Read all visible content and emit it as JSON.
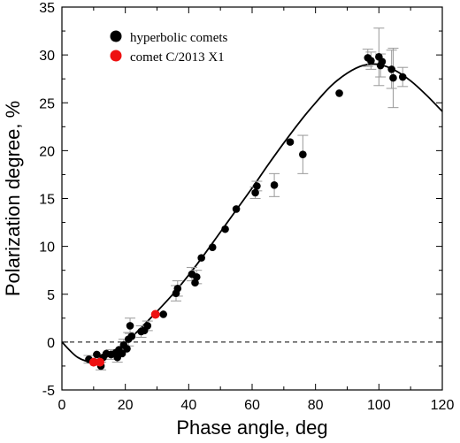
{
  "chart_data": {
    "type": "scatter",
    "xlabel": "Phase angle, deg",
    "ylabel": "Polarization degree, %",
    "xlim": [
      0,
      120
    ],
    "ylim": [
      -5,
      35
    ],
    "xticks": [
      0,
      20,
      40,
      60,
      80,
      100,
      120
    ],
    "yticks": [
      -5,
      0,
      5,
      10,
      15,
      20,
      25,
      30,
      35
    ],
    "grid": false,
    "legend_position": "top-left",
    "reference_line": {
      "y": 0,
      "style": "dashed"
    },
    "colors": {
      "hyperbolic": "#000000",
      "comet": "#ee1111",
      "errorbar": "#999999",
      "curve": "#000000"
    },
    "series": [
      {
        "name": "hyperbolic comets",
        "points": [
          {
            "x": 8.5,
            "y": -1.8
          },
          {
            "x": 11,
            "y": -1.3
          },
          {
            "x": 12.3,
            "y": -2.5
          },
          {
            "x": 13,
            "y": -1.6
          },
          {
            "x": 14,
            "y": -1.2
          },
          {
            "x": 15.5,
            "y": -1.3
          },
          {
            "x": 17,
            "y": -1.1
          },
          {
            "x": 17.5,
            "y": -1.6
          },
          {
            "x": 18,
            "y": -0.8
          },
          {
            "x": 19,
            "y": -1.2
          },
          {
            "x": 19.5,
            "y": -0.3
          },
          {
            "x": 20.5,
            "y": -0.7
          },
          {
            "x": 21,
            "y": 0.3
          },
          {
            "x": 21.5,
            "y": 1.7
          },
          {
            "x": 22,
            "y": 0.6
          },
          {
            "x": 25,
            "y": 1.1
          },
          {
            "x": 26,
            "y": 1.2
          },
          {
            "x": 27,
            "y": 1.7
          },
          {
            "x": 32,
            "y": 2.9
          },
          {
            "x": 36,
            "y": 5.1
          },
          {
            "x": 36.5,
            "y": 5.6
          },
          {
            "x": 41,
            "y": 7.1
          },
          {
            "x": 42,
            "y": 6.2
          },
          {
            "x": 42.5,
            "y": 6.8
          },
          {
            "x": 44,
            "y": 8.8
          },
          {
            "x": 47.5,
            "y": 9.9
          },
          {
            "x": 51.5,
            "y": 11.8
          },
          {
            "x": 55,
            "y": 13.9
          },
          {
            "x": 61,
            "y": 15.6
          },
          {
            "x": 61.5,
            "y": 16.3
          },
          {
            "x": 67,
            "y": 16.4
          },
          {
            "x": 72,
            "y": 20.9
          },
          {
            "x": 76,
            "y": 19.6
          },
          {
            "x": 87.5,
            "y": 26
          },
          {
            "x": 96.5,
            "y": 29.7
          },
          {
            "x": 97.5,
            "y": 29.4
          },
          {
            "x": 100,
            "y": 29.8
          },
          {
            "x": 100.5,
            "y": 28.9
          },
          {
            "x": 101,
            "y": 29.3
          },
          {
            "x": 104,
            "y": 28.5
          },
          {
            "x": 104.5,
            "y": 27.6
          },
          {
            "x": 107.5,
            "y": 27.7
          }
        ],
        "errors": [
          {
            "x": 8.5,
            "y": -1.8,
            "e": 0.4
          },
          {
            "x": 12.3,
            "y": -2.5,
            "e": 0.4
          },
          {
            "x": 15.5,
            "y": -1.3,
            "e": 0.5
          },
          {
            "x": 17.5,
            "y": -1.6,
            "e": 0.5
          },
          {
            "x": 19.5,
            "y": -0.3,
            "e": 0.6
          },
          {
            "x": 21,
            "y": 0.3,
            "e": 0.7
          },
          {
            "x": 21.5,
            "y": 1.7,
            "e": 0.8
          },
          {
            "x": 25,
            "y": 1.1,
            "e": 0.6
          },
          {
            "x": 27,
            "y": 1.7,
            "e": 0.5
          },
          {
            "x": 36,
            "y": 5.1,
            "e": 0.8
          },
          {
            "x": 36.5,
            "y": 5.6,
            "e": 0.8
          },
          {
            "x": 41,
            "y": 7.1,
            "e": 0.7
          },
          {
            "x": 42.5,
            "y": 6.8,
            "e": 0.7
          },
          {
            "x": 61,
            "y": 15.6,
            "e": 0.6
          },
          {
            "x": 61.5,
            "y": 16.3,
            "e": 0.5
          },
          {
            "x": 67,
            "y": 16.4,
            "e": 1.2
          },
          {
            "x": 76,
            "y": 19.6,
            "e": 2
          },
          {
            "x": 96.5,
            "y": 29.7,
            "e": 0.9
          },
          {
            "x": 97.5,
            "y": 29.4,
            "e": 0.9
          },
          {
            "x": 100,
            "y": 29.8,
            "e": 3
          },
          {
            "x": 100.5,
            "y": 28.9,
            "e": 1.2
          },
          {
            "x": 104,
            "y": 28.5,
            "e": 2
          },
          {
            "x": 104.5,
            "y": 27.6,
            "e": 3.1
          },
          {
            "x": 107.5,
            "y": 27.7,
            "e": 1
          }
        ]
      },
      {
        "name": "comet C/2013 X1",
        "points": [
          {
            "x": 10,
            "y": -2.1
          },
          {
            "x": 12,
            "y": -2.1
          },
          {
            "x": 29.5,
            "y": 2.9
          }
        ]
      }
    ],
    "curve": {
      "x": [
        0,
        5,
        10,
        15,
        20,
        25,
        30,
        35,
        40,
        45,
        50,
        55,
        60,
        65,
        70,
        75,
        80,
        85,
        90,
        95,
        100,
        105,
        110,
        115,
        120
      ],
      "y": [
        0,
        -1.6,
        -2.05,
        -1.4,
        -0.1,
        1.5,
        3.2,
        5.0,
        7.0,
        9.2,
        11.5,
        13.8,
        16.1,
        18.5,
        20.8,
        23.0,
        25.0,
        26.8,
        28.1,
        28.9,
        29.0,
        28.4,
        27.3,
        25.8,
        24.1
      ]
    }
  }
}
